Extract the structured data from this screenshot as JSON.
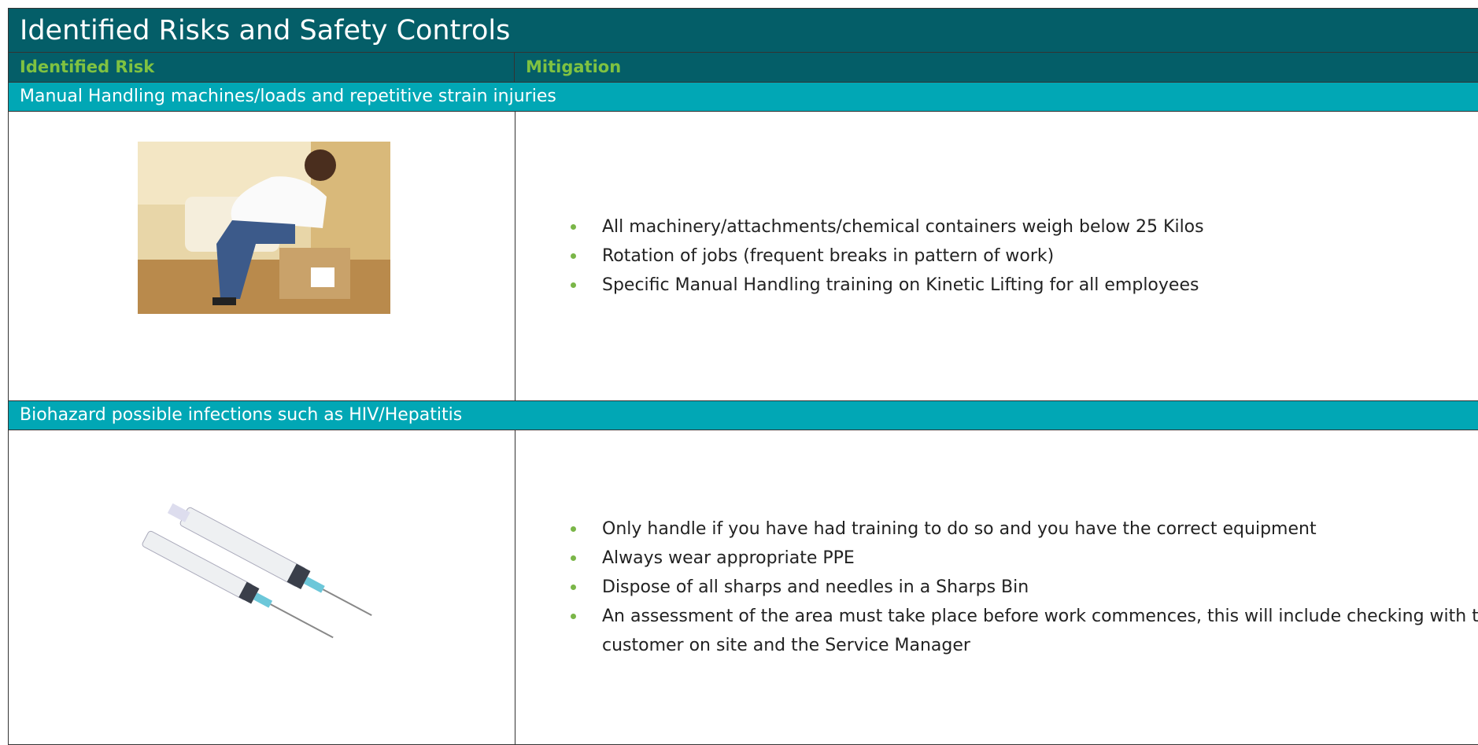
{
  "title": "Identified Risks and Safety Controls",
  "header": {
    "risk": "Identified Risk",
    "mitigation": "Mitigation"
  },
  "rows": [
    {
      "risk": "Manual Handling machines/loads and repetitive strain injuries",
      "mitigations": [
        "All machinery/attachments/chemical containers weigh below 25 Kilos",
        "Rotation of jobs (frequent breaks in pattern of work)",
        "Specific Manual Handling training on Kinetic Lifting for all employees"
      ]
    },
    {
      "risk": "Biohazard possible infections such as HIV/Hepatitis",
      "mitigations": [
        "Only handle if you have had training to do so and you have the correct equipment",
        "Always wear appropriate PPE",
        "Dispose of all sharps and needles in a Sharps Bin",
        "An assessment of the area must take place before work commences, this will include checking with the customer on site and the Service Manager"
      ]
    }
  ]
}
